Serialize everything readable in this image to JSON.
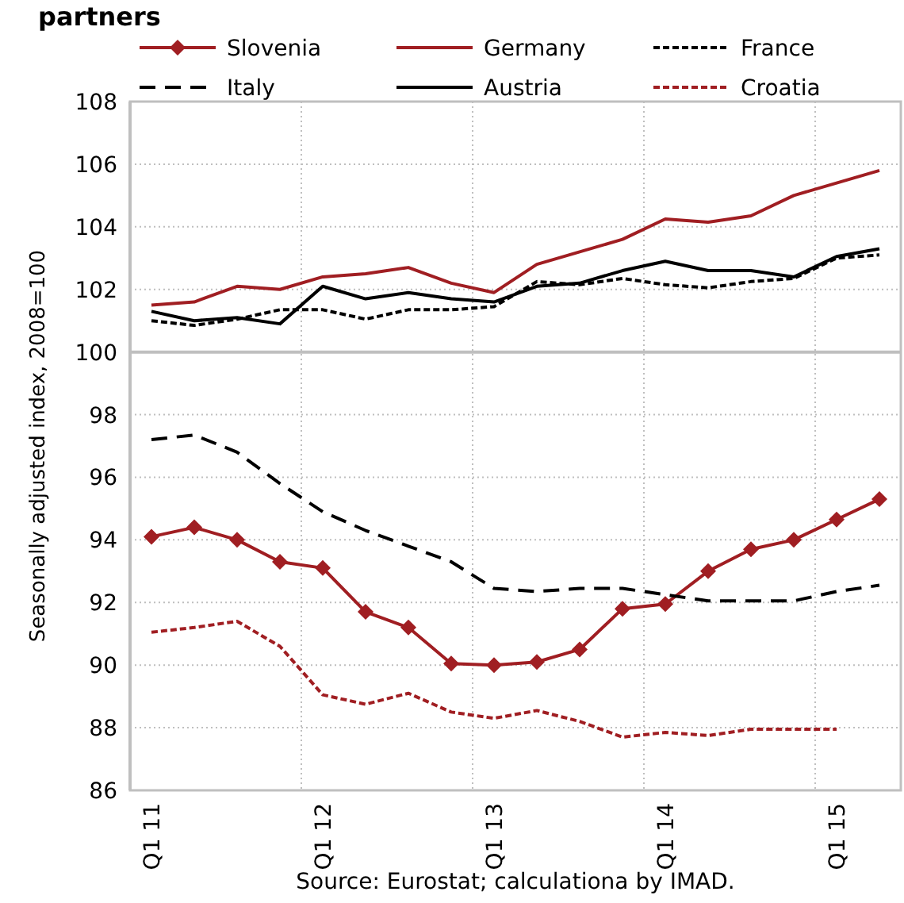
{
  "chart_data": {
    "type": "line",
    "title": "partners",
    "ylabel": "Seasonally adjusted index, 2008=100",
    "categories": [
      "Q1 11",
      null,
      null,
      null,
      "Q1 12",
      null,
      null,
      null,
      "Q1 13",
      null,
      null,
      null,
      "Q1 14",
      null,
      null,
      null,
      "Q1 15",
      null
    ],
    "ylim": [
      86,
      108
    ],
    "yticks": [
      86,
      88,
      90,
      92,
      94,
      96,
      98,
      100,
      102,
      104,
      106,
      108
    ],
    "grid": true,
    "legend": "top",
    "ref_lines": [
      {
        "axis": "y",
        "value": 100,
        "color": "#bfbfbf"
      }
    ],
    "annotations": [
      "Source: Eurostat; calculationa by IMAD."
    ],
    "series": [
      {
        "name": "Slovenia",
        "color": "#a01e22",
        "marker": "diamond",
        "line_style": "solid",
        "values": [
          94.1,
          94.4,
          94.0,
          93.3,
          93.1,
          91.7,
          91.2,
          90.05,
          90.0,
          90.1,
          90.5,
          91.8,
          91.95,
          93.0,
          93.7,
          94.0,
          94.65,
          95.3
        ]
      },
      {
        "name": "Germany",
        "color": "#a01e22",
        "marker": "none",
        "line_style": "solid",
        "values": [
          101.5,
          101.6,
          102.1,
          102.0,
          102.4,
          102.5,
          102.7,
          102.2,
          101.9,
          102.8,
          103.2,
          103.6,
          104.25,
          104.15,
          104.35,
          105.0,
          105.4,
          105.8
        ]
      },
      {
        "name": "France",
        "color": "#000000",
        "marker": "none",
        "line_style": "dotted",
        "values": [
          101.0,
          100.85,
          101.05,
          101.35,
          101.35,
          101.05,
          101.35,
          101.35,
          101.45,
          102.25,
          102.15,
          102.35,
          102.15,
          102.05,
          102.25,
          102.35,
          103.0,
          103.1
        ]
      },
      {
        "name": "Italy",
        "color": "#000000",
        "marker": "none",
        "line_style": "dashed",
        "values": [
          97.2,
          97.35,
          96.8,
          95.8,
          94.9,
          94.3,
          93.8,
          93.3,
          92.45,
          92.35,
          92.45,
          92.45,
          92.25,
          92.05,
          92.05,
          92.05,
          92.35,
          92.55
        ]
      },
      {
        "name": "Austria",
        "color": "#000000",
        "marker": "none",
        "line_style": "solid",
        "values": [
          101.3,
          101.0,
          101.1,
          100.9,
          102.1,
          101.7,
          101.9,
          101.7,
          101.6,
          102.1,
          102.2,
          102.6,
          102.9,
          102.6,
          102.6,
          102.4,
          103.05,
          103.3
        ]
      },
      {
        "name": "Croatia",
        "color": "#a01e22",
        "marker": "none",
        "line_style": "dotted",
        "values": [
          91.05,
          91.2,
          91.4,
          90.6,
          89.05,
          88.75,
          89.1,
          88.5,
          88.3,
          88.55,
          88.2,
          87.7,
          87.85,
          87.75,
          87.95,
          87.95,
          87.95,
          null
        ]
      }
    ]
  }
}
